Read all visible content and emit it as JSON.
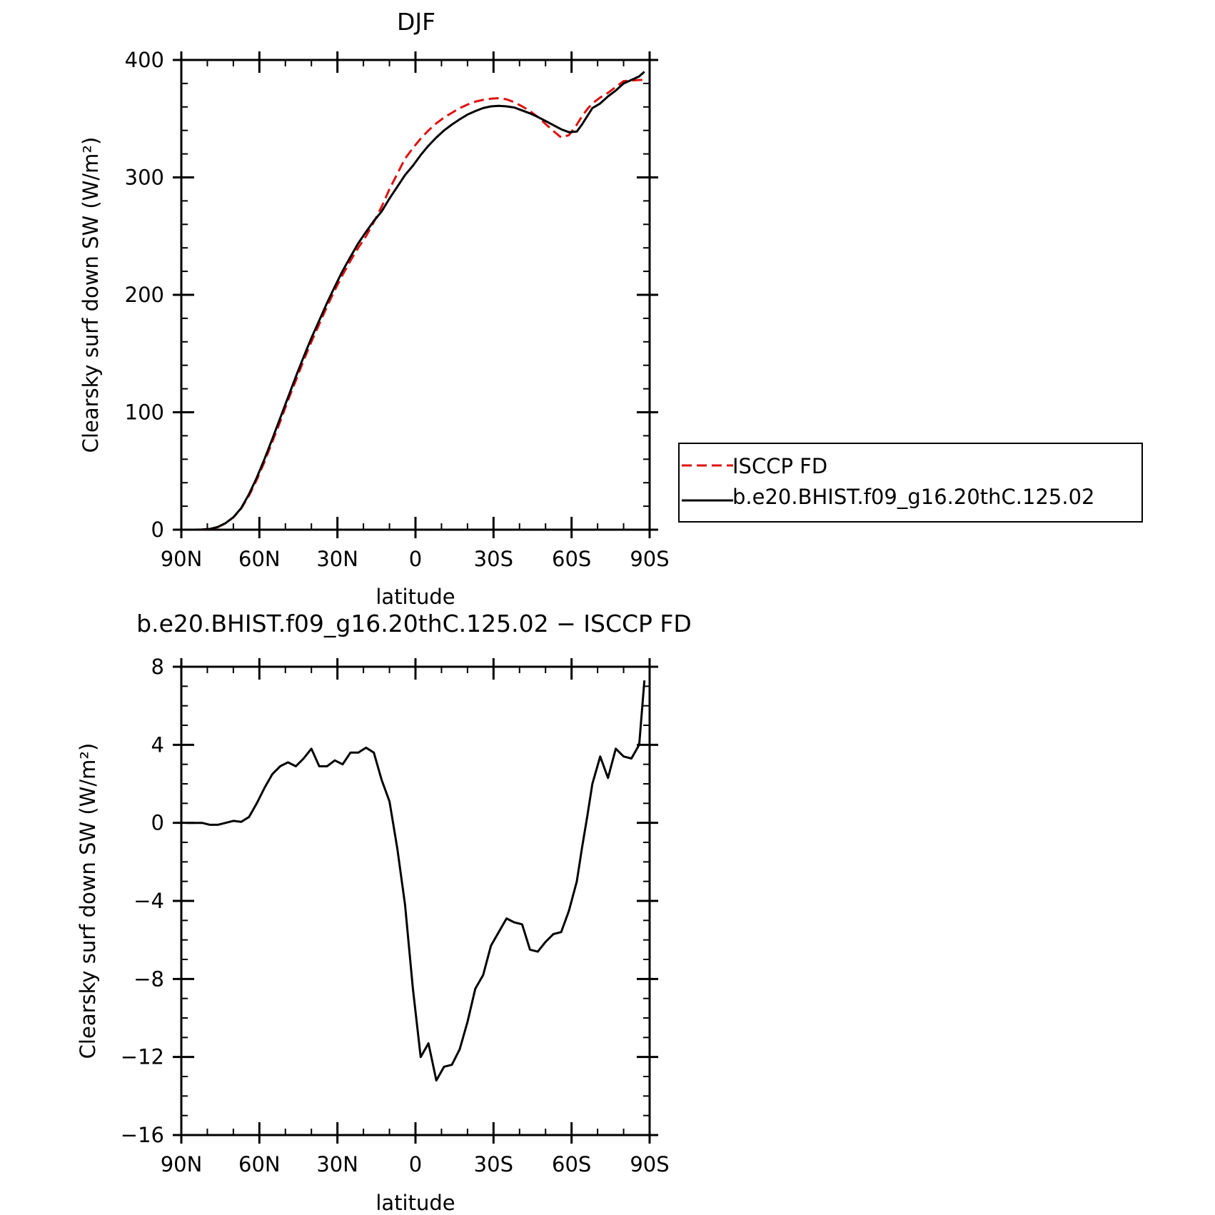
{
  "chart_data": [
    {
      "type": "line",
      "title": "DJF",
      "xlabel": "latitude",
      "ylabel": "Clearsky surf down SW (W/m²)",
      "xlim": [
        90,
        -90
      ],
      "ylim": [
        0,
        400
      ],
      "xticks": [
        {
          "value": 90,
          "label": "90N"
        },
        {
          "value": 60,
          "label": "60N"
        },
        {
          "value": 30,
          "label": "30N"
        },
        {
          "value": 0,
          "label": "0"
        },
        {
          "value": -30,
          "label": "30S"
        },
        {
          "value": -60,
          "label": "60S"
        },
        {
          "value": -90,
          "label": "90S"
        }
      ],
      "yticks": [
        {
          "value": 0,
          "label": "0"
        },
        {
          "value": 100,
          "label": "100"
        },
        {
          "value": 200,
          "label": "200"
        },
        {
          "value": 300,
          "label": "300"
        },
        {
          "value": 400,
          "label": "400"
        }
      ],
      "legend": {
        "placement": "right"
      },
      "series": [
        {
          "name": "ISCCP FD",
          "color": "#e01010",
          "dash": true,
          "x": [
            88,
            85,
            82,
            79,
            76,
            73,
            70,
            67,
            64,
            61,
            58,
            55,
            52,
            49,
            46,
            43,
            40,
            37,
            34,
            31,
            28,
            25,
            22,
            19,
            16,
            13,
            10,
            7,
            4,
            1,
            -2,
            -5,
            -8,
            -11,
            -14,
            -17,
            -20,
            -23,
            -26,
            -29,
            -32,
            -35,
            -38,
            -41,
            -44,
            -47,
            -50,
            -53,
            -56,
            -59,
            -62,
            -64,
            -66,
            -68,
            -71,
            -74,
            -77,
            -80,
            -83,
            -86,
            -88
          ],
          "values": [
            0,
            0,
            0.1,
            0.6,
            2.2,
            5.5,
            10.5,
            18,
            29,
            42.5,
            58,
            75,
            92,
            110,
            127,
            144,
            160,
            175,
            190,
            204,
            217,
            229,
            240,
            250,
            262,
            275,
            290,
            303,
            316,
            325,
            333,
            340,
            346,
            351,
            355,
            359,
            362,
            364.5,
            366,
            367,
            367.5,
            366.5,
            364,
            360.5,
            356.5,
            351.5,
            345.5,
            339.5,
            334,
            336,
            345,
            352,
            358,
            363,
            368,
            372,
            377,
            382,
            382.5,
            383,
            383
          ]
        },
        {
          "name": "b.e20.BHIST.f09_g16.20thC.125.02",
          "color": "#000000",
          "dash": false,
          "x": [
            88,
            85,
            82,
            79,
            76,
            73,
            70,
            67,
            64,
            61,
            58,
            55,
            52,
            49,
            46,
            43,
            40,
            37,
            34,
            31,
            28,
            25,
            22,
            19,
            16,
            13,
            10,
            7,
            4,
            1,
            -2,
            -5,
            -8,
            -11,
            -14,
            -17,
            -20,
            -23,
            -26,
            -29,
            -32,
            -35,
            -38,
            -41,
            -44,
            -47,
            -50,
            -53,
            -56,
            -59,
            -62,
            -64,
            -66,
            -68,
            -71,
            -74,
            -77,
            -80,
            -83,
            -86,
            -88
          ],
          "values": [
            0,
            0,
            0.1,
            0.6,
            2.3,
            5.6,
            10.6,
            18.3,
            30.2,
            44.3,
            60.3,
            77.5,
            95,
            112.6,
            130.3,
            147.1,
            163.2,
            178.1,
            193.1,
            207,
            220.5,
            232.3,
            243.8,
            253.7,
            262.9,
            271,
            282,
            292,
            302,
            310,
            319,
            327,
            334,
            340,
            345,
            349.5,
            353.5,
            356.5,
            359,
            360.5,
            361,
            360.5,
            359.5,
            357,
            354.5,
            351.5,
            348,
            344.5,
            341,
            338.5,
            339,
            345,
            352,
            359,
            363,
            369,
            374,
            380,
            383,
            386,
            390
          ]
        }
      ]
    },
    {
      "type": "line",
      "title": "b.e20.BHIST.f09_g16.20thC.125.02 − ISCCP FD",
      "xlabel": "latitude",
      "ylabel": "Clearsky surf down SW (W/m²)",
      "xlim": [
        90,
        -90
      ],
      "ylim": [
        -16,
        8
      ],
      "xticks": [
        {
          "value": 90,
          "label": "90N"
        },
        {
          "value": 60,
          "label": "60N"
        },
        {
          "value": 30,
          "label": "30N"
        },
        {
          "value": 0,
          "label": "0"
        },
        {
          "value": -30,
          "label": "30S"
        },
        {
          "value": -60,
          "label": "60S"
        },
        {
          "value": -90,
          "label": "90S"
        }
      ],
      "yticks": [
        {
          "value": 8,
          "label": "8"
        },
        {
          "value": 4,
          "label": "4"
        },
        {
          "value": 0,
          "label": "0"
        },
        {
          "value": -4,
          "label": "−4"
        },
        {
          "value": -8,
          "label": "−8"
        },
        {
          "value": -12,
          "label": "−12"
        },
        {
          "value": -16,
          "label": "−16"
        }
      ],
      "series": [
        {
          "color": "#000000",
          "x": [
            88,
            85,
            82,
            79,
            76,
            73,
            70,
            67,
            64,
            61,
            58,
            55,
            52,
            49,
            46,
            43,
            40,
            37,
            34,
            31,
            28,
            25,
            22,
            19,
            16,
            13,
            10,
            7,
            4,
            1,
            -2,
            -5,
            -8,
            -11,
            -14,
            -17,
            -20,
            -23,
            -26,
            -29,
            -32,
            -35,
            -38,
            -41,
            -44,
            -47,
            -50,
            -53,
            -56,
            -59,
            -62,
            -64,
            -66,
            -68,
            -71,
            -74,
            -77,
            -80,
            -83,
            -86,
            -88
          ],
          "values": [
            0,
            0,
            0,
            -0.1,
            -0.1,
            0,
            0.1,
            0.05,
            0.3,
            1.0,
            1.8,
            2.5,
            2.9,
            3.1,
            2.9,
            3.3,
            3.8,
            2.9,
            2.9,
            3.2,
            3.0,
            3.6,
            3.6,
            3.85,
            3.6,
            2.2,
            1.1,
            -1.3,
            -4.2,
            -8.5,
            -12.0,
            -11.3,
            -13.2,
            -12.5,
            -12.4,
            -11.6,
            -10.2,
            -8.5,
            -7.8,
            -6.3,
            -5.6,
            -4.9,
            -5.1,
            -5.2,
            -6.5,
            -6.6,
            -6.1,
            -5.7,
            -5.6,
            -4.5,
            -3.0,
            -1.3,
            0.3,
            2.0,
            3.4,
            2.3,
            3.8,
            3.4,
            3.3,
            4.0,
            7.3
          ]
        }
      ]
    }
  ]
}
